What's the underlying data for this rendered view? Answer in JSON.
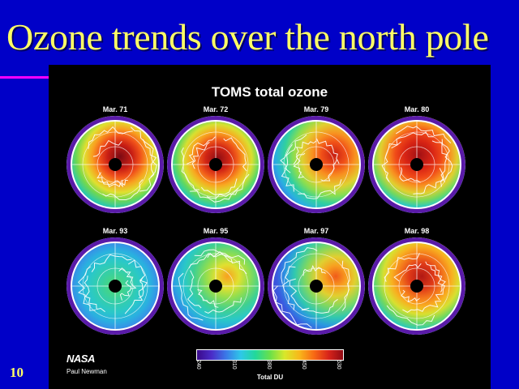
{
  "slide": {
    "title": "Ozone trends over the north pole",
    "number": "10",
    "background_color": "#0000c8",
    "title_color": "#ffff66"
  },
  "figure": {
    "title": "TOMS total ozone",
    "maps": [
      {
        "label": "Mar. 71",
        "gradient": "radial-gradient(circle at 55% 42%, #7a0a14 0%, #c81e14 16%, #f0501a 26%, #f8a020 36%, #e0e030 46%, #70d850 56%, #28c8b0 66%, #3a8ae8 74%, #4a3cc8 82%)"
      },
      {
        "label": "Mar. 72",
        "gradient": "radial-gradient(circle at 52% 44%, #8a0c14 0%, #d02414 16%, #f05a1a 26%, #f8a820 36%, #d8e030 46%, #60d860 56%, #22c8c0 66%, #3a86e8 74%, #4a3ac8 82%)"
      },
      {
        "label": "Mar. 79",
        "gradient": "radial-gradient(circle at 68% 40%, #c81e14 0%, #f05018 14%, #f89020 24%, #e0d030 36%, #8ade50 46%, #30d0a0 56%, #2ab0e0 66%, #3a78e8 74%, #4a38c8 82%)"
      },
      {
        "label": "Mar. 80",
        "gradient": "radial-gradient(circle at 52% 40%, #a01014 0%, #d82414 18%, #f04a18 30%, #f89020 40%, #e0d030 50%, #70d860 60%, #28c8c8 68%, #3a7ae8 76%, #4a38c8 83%)"
      },
      {
        "label": "Mar. 93",
        "gradient": "radial-gradient(circle at 50% 50%, #50d870 0%, #38d0a0 20%, #2ac8c8 38%, #2ab0e0 52%, #3a8ae8 64%, #4a5ad8 74%, #4a38c8 83%)"
      },
      {
        "label": "Mar. 95",
        "gradient": "radial-gradient(circle at 62% 40%, #f8a020 0%, #e0e030 14%, #90de50 26%, #40d090 40%, #2ac8c8 52%, #2aa8e0 62%, #3a78e8 72%, #4a38c8 82%)"
      },
      {
        "label": "Mar. 97",
        "gradient": "radial-gradient(circle at 70% 40%, #f05a1a 0%, #f8a020 12%, #e0d030 22%, #80d860 34%, #30c8b0 46%, #2a98e0 56%, #3a5ae0 66%, #4a38c8 82%)"
      },
      {
        "label": "Mar. 98",
        "gradient": "radial-gradient(circle at 55% 40%, #b01814 0%, #e03a18 16%, #f47a1c 28%, #f8b020 38%, #d8e030 48%, #70d860 58%, #28c8c0 68%, #3a7ae8 76%, #4a38c8 83%)"
      }
    ],
    "logo": "NASA",
    "credit": "Paul Newman",
    "colorbar": {
      "label": "Total DU",
      "ticks": [
        "240",
        "310",
        "380",
        "450",
        "530"
      ]
    }
  }
}
